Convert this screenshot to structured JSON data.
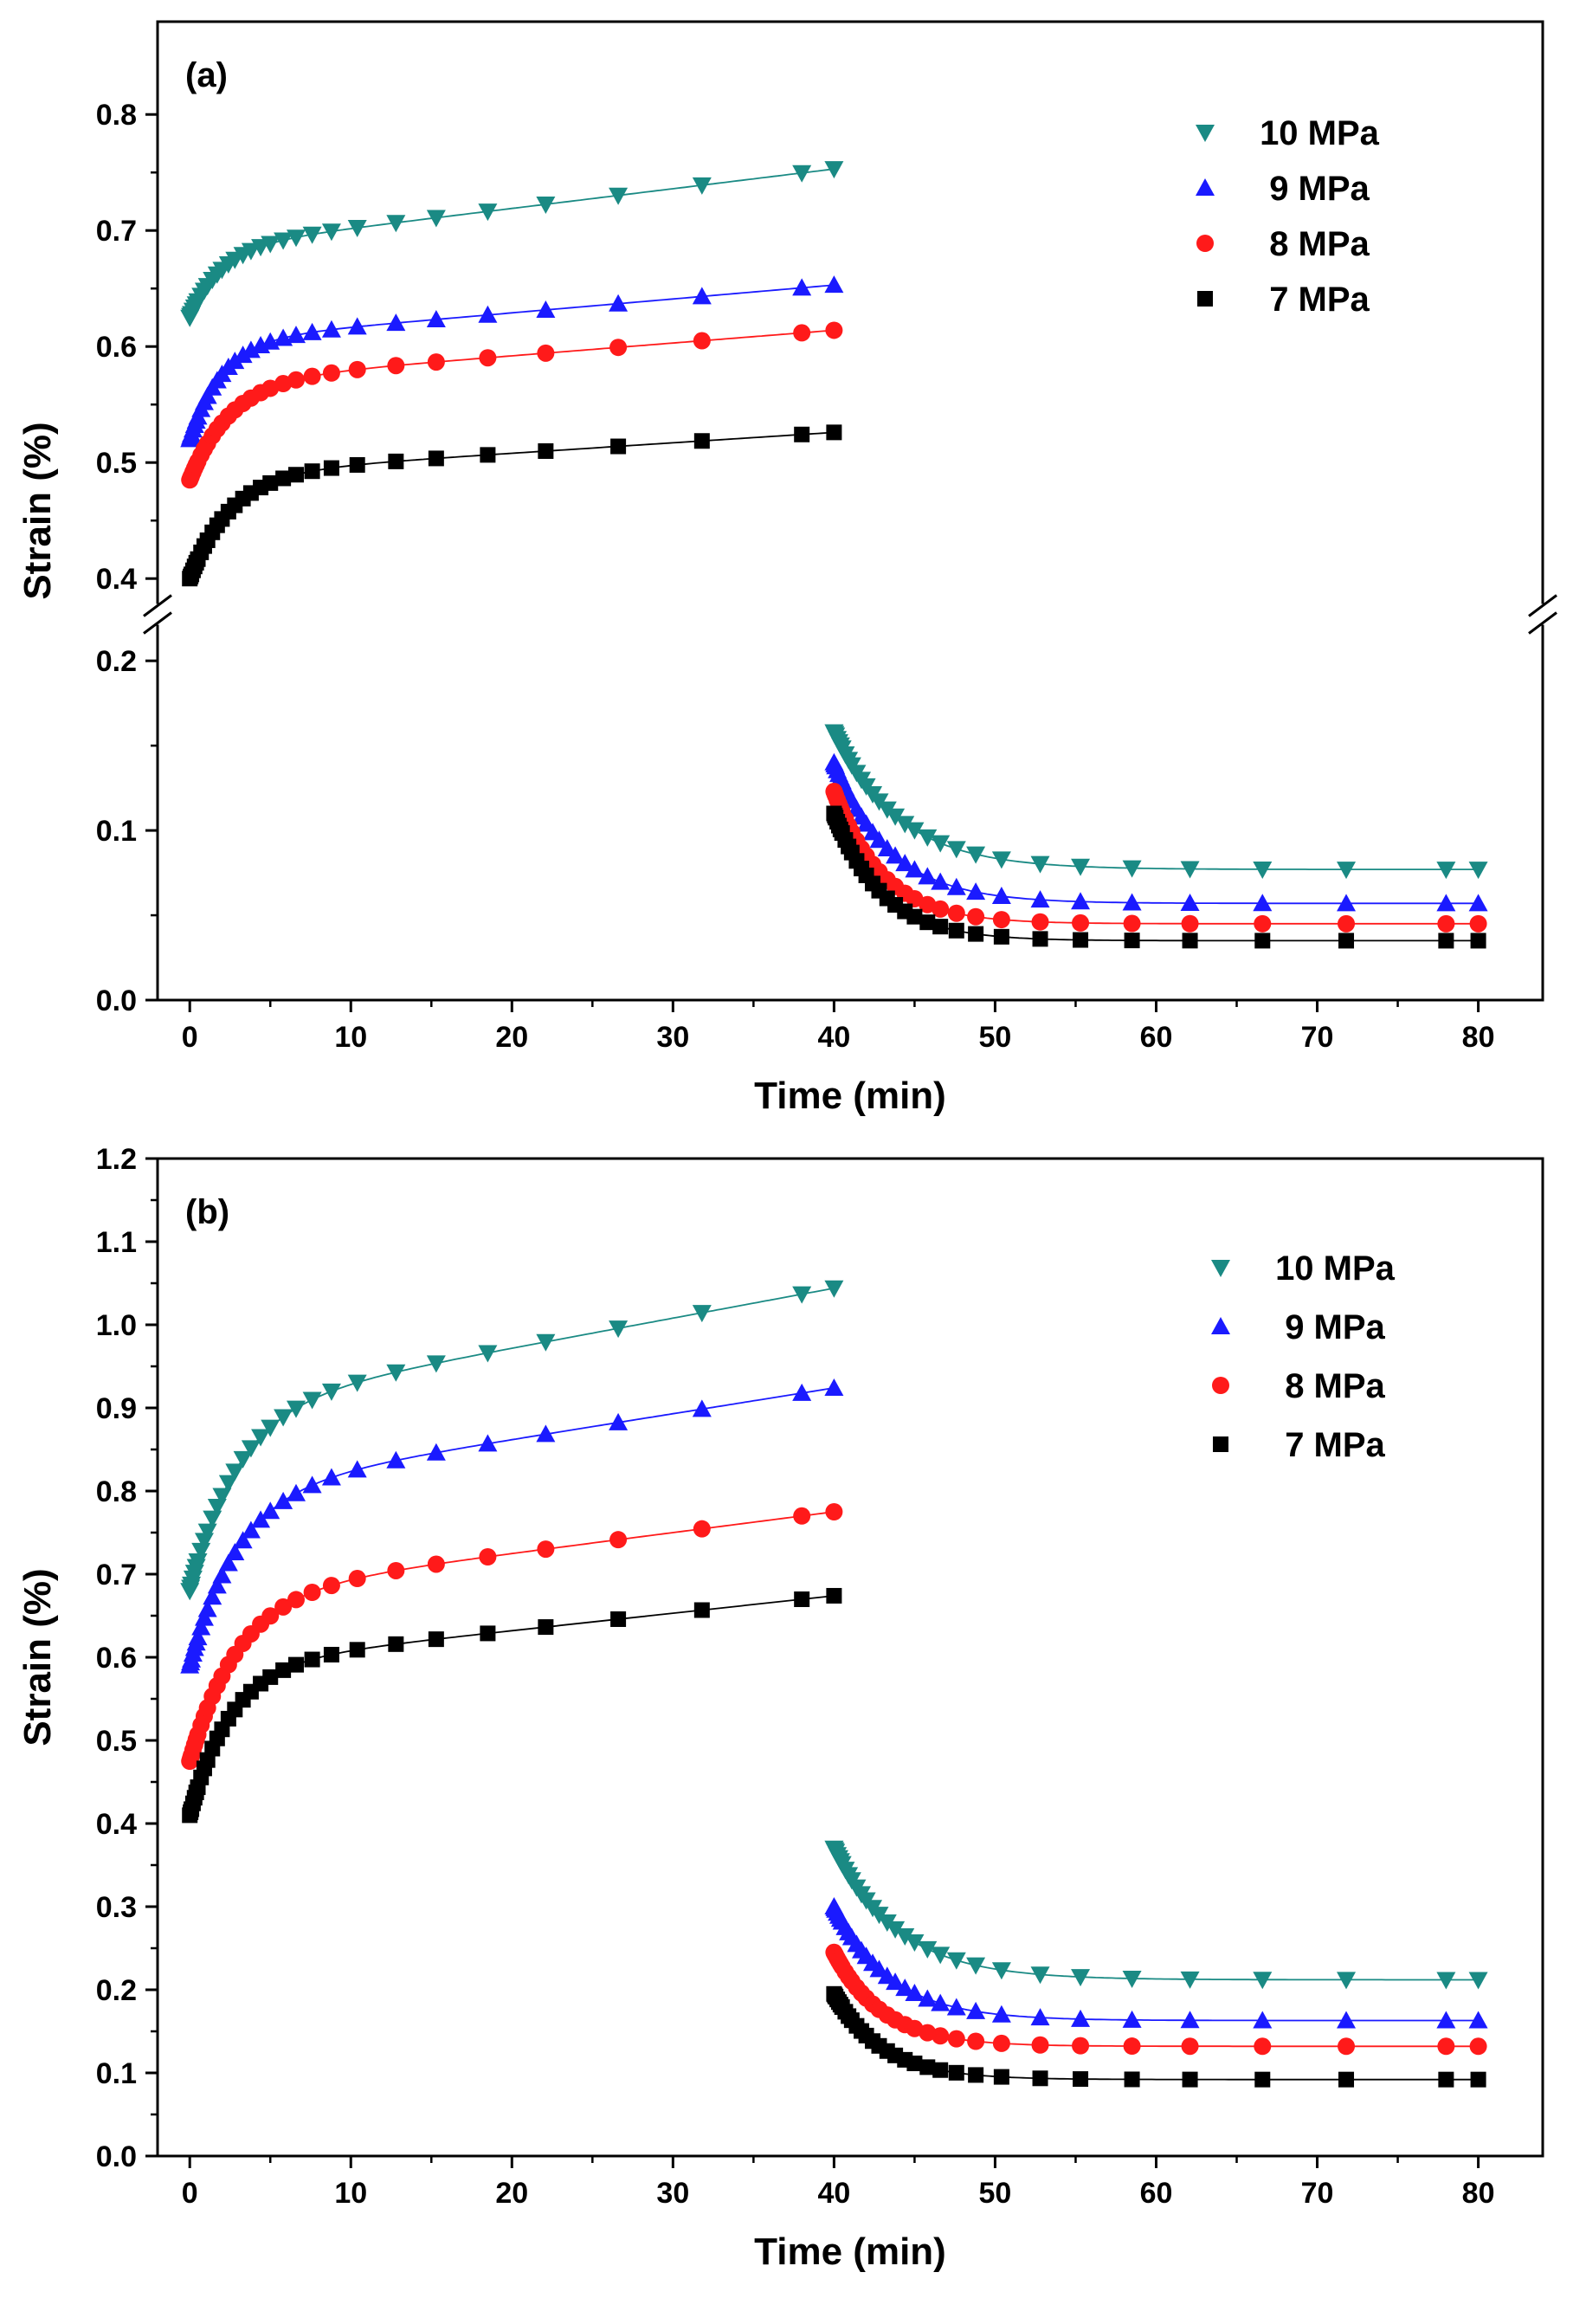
{
  "chart_data": [
    {
      "panel_label": "(a)",
      "type": "scatter",
      "xlabel": "Time (min)",
      "ylabel": "Strain (%)",
      "xlim": [
        -2,
        84
      ],
      "x_ticks": [
        0,
        10,
        20,
        30,
        40,
        50,
        60,
        70,
        80
      ],
      "y_break": true,
      "y_segments": {
        "lower": {
          "range": [
            0.0,
            0.22
          ],
          "ticks": [
            0.0,
            0.1,
            0.2
          ]
        },
        "upper": {
          "range": [
            0.38,
            0.88
          ],
          "ticks": [
            0.4,
            0.5,
            0.6,
            0.7,
            0.8
          ]
        }
      },
      "legend_position": "top-right",
      "legend_order": [
        "10 MPa",
        "9 MPa",
        "8 MPa",
        "7 MPa"
      ],
      "series": [
        {
          "name": "10 MPa",
          "color": "#1a8a84",
          "marker": "triangle-down",
          "creep": {
            "start": 0.625,
            "jump": 0.06,
            "tau": 2.0,
            "slope": 0.0017
          },
          "recovery": {
            "start": 0.158,
            "final": 0.077,
            "tau": 4.0
          }
        },
        {
          "name": "9 MPa",
          "color": "#1a1aff",
          "marker": "triangle-up",
          "creep": {
            "start": 0.52,
            "jump": 0.085,
            "tau": 2.0,
            "slope": 0.0012
          },
          "recovery": {
            "start": 0.14,
            "final": 0.057,
            "tau": 3.5
          }
        },
        {
          "name": "8 MPa",
          "color": "#ff1a1a",
          "marker": "circle",
          "creep": {
            "start": 0.485,
            "jump": 0.085,
            "tau": 2.5,
            "slope": 0.0011
          },
          "recovery": {
            "start": 0.123,
            "final": 0.045,
            "tau": 3.0
          }
        },
        {
          "name": "7 MPa",
          "color": "#000000",
          "marker": "square",
          "creep": {
            "start": 0.4,
            "jump": 0.09,
            "tau": 2.5,
            "slope": 0.0009
          },
          "recovery": {
            "start": 0.11,
            "final": 0.035,
            "tau": 3.0
          }
        }
      ]
    },
    {
      "panel_label": "(b)",
      "type": "scatter",
      "xlabel": "Time (min)",
      "ylabel": "Strain (%)",
      "xlim": [
        -2,
        84
      ],
      "x_ticks": [
        0,
        10,
        20,
        30,
        40,
        50,
        60,
        70,
        80
      ],
      "ylim": [
        0.0,
        1.2
      ],
      "y_ticks": [
        0.0,
        0.1,
        0.2,
        0.3,
        0.4,
        0.5,
        0.6,
        0.7,
        0.8,
        0.9,
        1.0,
        1.1,
        1.2
      ],
      "legend_position": "top-right",
      "legend_order": [
        "10 MPa",
        "9 MPa",
        "8 MPa",
        "7 MPa"
      ],
      "series": [
        {
          "name": "10 MPa",
          "color": "#1a8a84",
          "marker": "triangle-down",
          "creep": {
            "start": 0.68,
            "jump": 0.22,
            "tau": 3.0,
            "slope": 0.0036
          },
          "recovery": {
            "start": 0.37,
            "final": 0.212,
            "tau": 4.0
          }
        },
        {
          "name": "9 MPa",
          "color": "#1a1aff",
          "marker": "triangle-up",
          "creep": {
            "start": 0.59,
            "jump": 0.21,
            "tau": 3.0,
            "slope": 0.0031
          },
          "recovery": {
            "start": 0.3,
            "final": 0.163,
            "tau": 3.5
          }
        },
        {
          "name": "8 MPa",
          "color": "#ff1a1a",
          "marker": "circle",
          "creep": {
            "start": 0.475,
            "jump": 0.2,
            "tau": 3.0,
            "slope": 0.0025
          },
          "recovery": {
            "start": 0.245,
            "final": 0.132,
            "tau": 3.0
          }
        },
        {
          "name": "7 MPa",
          "color": "#000000",
          "marker": "square",
          "creep": {
            "start": 0.41,
            "jump": 0.18,
            "tau": 2.5,
            "slope": 0.0021
          },
          "recovery": {
            "start": 0.195,
            "final": 0.092,
            "tau": 3.0
          }
        }
      ]
    }
  ]
}
